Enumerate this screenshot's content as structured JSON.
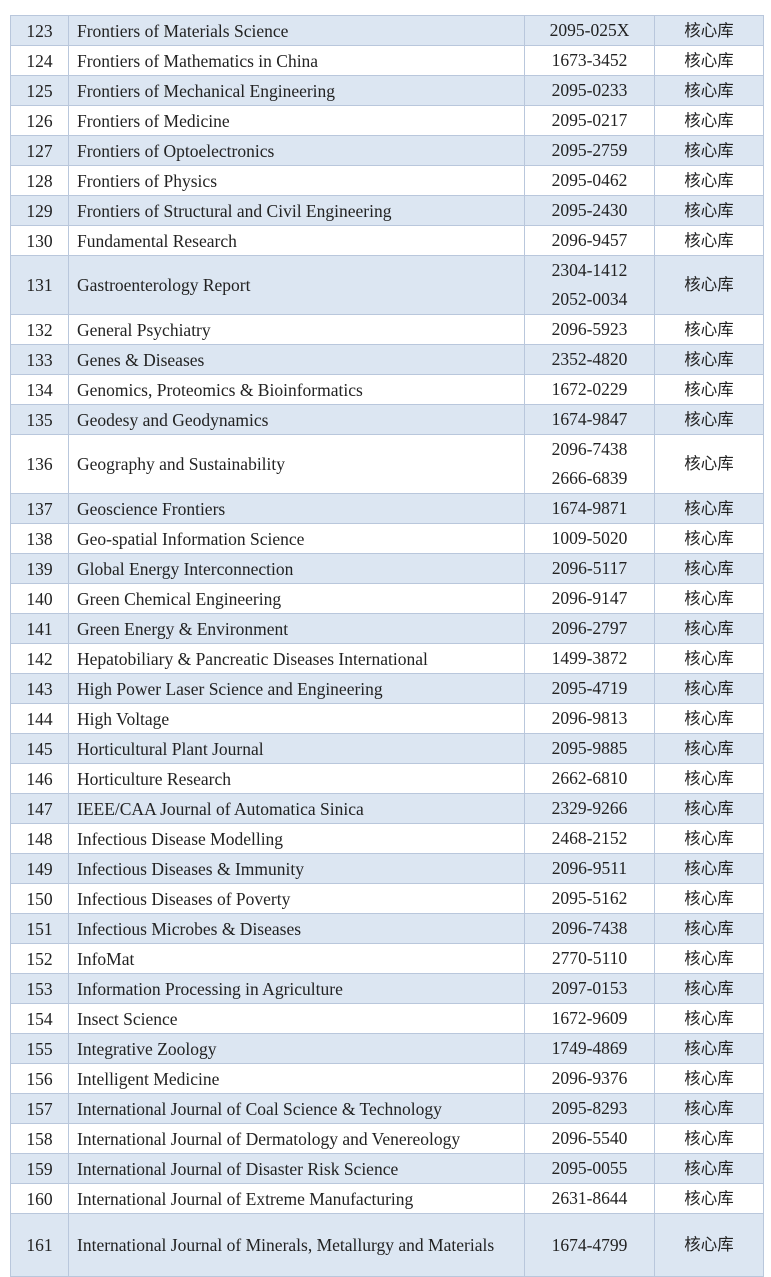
{
  "rows": [
    {
      "no": "123",
      "title": "Frontiers of Materials Science",
      "issn": [
        "2095-025X"
      ],
      "library": "核心库"
    },
    {
      "no": "124",
      "title": "Frontiers of Mathematics in China",
      "issn": [
        "1673-3452"
      ],
      "library": "核心库"
    },
    {
      "no": "125",
      "title": "Frontiers of Mechanical Engineering",
      "issn": [
        "2095-0233"
      ],
      "library": "核心库"
    },
    {
      "no": "126",
      "title": "Frontiers of Medicine",
      "issn": [
        "2095-0217"
      ],
      "library": "核心库"
    },
    {
      "no": "127",
      "title": "Frontiers of Optoelectronics",
      "issn": [
        "2095-2759"
      ],
      "library": "核心库"
    },
    {
      "no": "128",
      "title": "Frontiers of Physics",
      "issn": [
        "2095-0462"
      ],
      "library": "核心库"
    },
    {
      "no": "129",
      "title": "Frontiers of Structural and Civil Engineering",
      "issn": [
        "2095-2430"
      ],
      "library": "核心库"
    },
    {
      "no": "130",
      "title": "Fundamental Research",
      "issn": [
        "2096-9457"
      ],
      "library": "核心库"
    },
    {
      "no": "131",
      "title": "Gastroenterology Report",
      "issn": [
        "2304-1412",
        "2052-0034"
      ],
      "library": "核心库"
    },
    {
      "no": "132",
      "title": "General Psychiatry",
      "issn": [
        "2096-5923"
      ],
      "library": "核心库"
    },
    {
      "no": "133",
      "title": "Genes & Diseases",
      "issn": [
        "2352-4820"
      ],
      "library": "核心库"
    },
    {
      "no": "134",
      "title": "Genomics, Proteomics & Bioinformatics",
      "issn": [
        "1672-0229"
      ],
      "library": "核心库"
    },
    {
      "no": "135",
      "title": "Geodesy and Geodynamics",
      "issn": [
        "1674-9847"
      ],
      "library": "核心库"
    },
    {
      "no": "136",
      "title": "Geography and Sustainability",
      "issn": [
        "2096-7438",
        "2666-6839"
      ],
      "library": "核心库"
    },
    {
      "no": "137",
      "title": "Geoscience Frontiers",
      "issn": [
        "1674-9871"
      ],
      "library": "核心库"
    },
    {
      "no": "138",
      "title": "Geo-spatial Information Science",
      "issn": [
        "1009-5020"
      ],
      "library": "核心库"
    },
    {
      "no": "139",
      "title": "Global Energy Interconnection",
      "issn": [
        "2096-5117"
      ],
      "library": "核心库"
    },
    {
      "no": "140",
      "title": "Green Chemical Engineering",
      "issn": [
        "2096-9147"
      ],
      "library": "核心库"
    },
    {
      "no": "141",
      "title": "Green Energy & Environment",
      "issn": [
        "2096-2797"
      ],
      "library": "核心库"
    },
    {
      "no": "142",
      "title": "Hepatobiliary & Pancreatic Diseases International",
      "issn": [
        "1499-3872"
      ],
      "library": "核心库"
    },
    {
      "no": "143",
      "title": "High Power Laser Science and Engineering",
      "issn": [
        "2095-4719"
      ],
      "library": "核心库"
    },
    {
      "no": "144",
      "title": "High Voltage",
      "issn": [
        "2096-9813"
      ],
      "library": "核心库"
    },
    {
      "no": "145",
      "title": "Horticultural Plant Journal",
      "issn": [
        "2095-9885"
      ],
      "library": "核心库"
    },
    {
      "no": "146",
      "title": "Horticulture Research",
      "issn": [
        "2662-6810"
      ],
      "library": "核心库"
    },
    {
      "no": "147",
      "title": "IEEE/CAA Journal of Automatica Sinica",
      "issn": [
        "2329-9266"
      ],
      "library": "核心库"
    },
    {
      "no": "148",
      "title": "Infectious Disease Modelling",
      "issn": [
        "2468-2152"
      ],
      "library": "核心库"
    },
    {
      "no": "149",
      "title": "Infectious Diseases & Immunity",
      "issn": [
        "2096-9511"
      ],
      "library": "核心库"
    },
    {
      "no": "150",
      "title": "Infectious Diseases of Poverty",
      "issn": [
        "2095-5162"
      ],
      "library": "核心库"
    },
    {
      "no": "151",
      "title": "Infectious Microbes & Diseases",
      "issn": [
        "2096-7438"
      ],
      "library": "核心库"
    },
    {
      "no": "152",
      "title": "InfoMat",
      "issn": [
        "2770-5110"
      ],
      "library": "核心库"
    },
    {
      "no": "153",
      "title": "Information Processing in Agriculture",
      "issn": [
        "2097-0153"
      ],
      "library": "核心库"
    },
    {
      "no": "154",
      "title": "Insect Science",
      "issn": [
        "1672-9609"
      ],
      "library": "核心库"
    },
    {
      "no": "155",
      "title": "Integrative Zoology",
      "issn": [
        "1749-4869"
      ],
      "library": "核心库"
    },
    {
      "no": "156",
      "title": "Intelligent Medicine",
      "issn": [
        "2096-9376"
      ],
      "library": "核心库"
    },
    {
      "no": "157",
      "title": "International Journal of Coal Science & Technology",
      "issn": [
        "2095-8293"
      ],
      "library": "核心库"
    },
    {
      "no": "158",
      "title": "International Journal of Dermatology and Venereology",
      "issn": [
        "2096-5540"
      ],
      "library": "核心库"
    },
    {
      "no": "159",
      "title": "International Journal of Disaster Risk Science",
      "issn": [
        "2095-0055"
      ],
      "library": "核心库"
    },
    {
      "no": "160",
      "title": "International Journal of Extreme Manufacturing",
      "issn": [
        "2631-8644"
      ],
      "library": "核心库"
    },
    {
      "no": "161",
      "title": "International Journal of Minerals, Metallurgy and Materials",
      "issn": [
        "1674-4799"
      ],
      "library": "核心库"
    }
  ]
}
